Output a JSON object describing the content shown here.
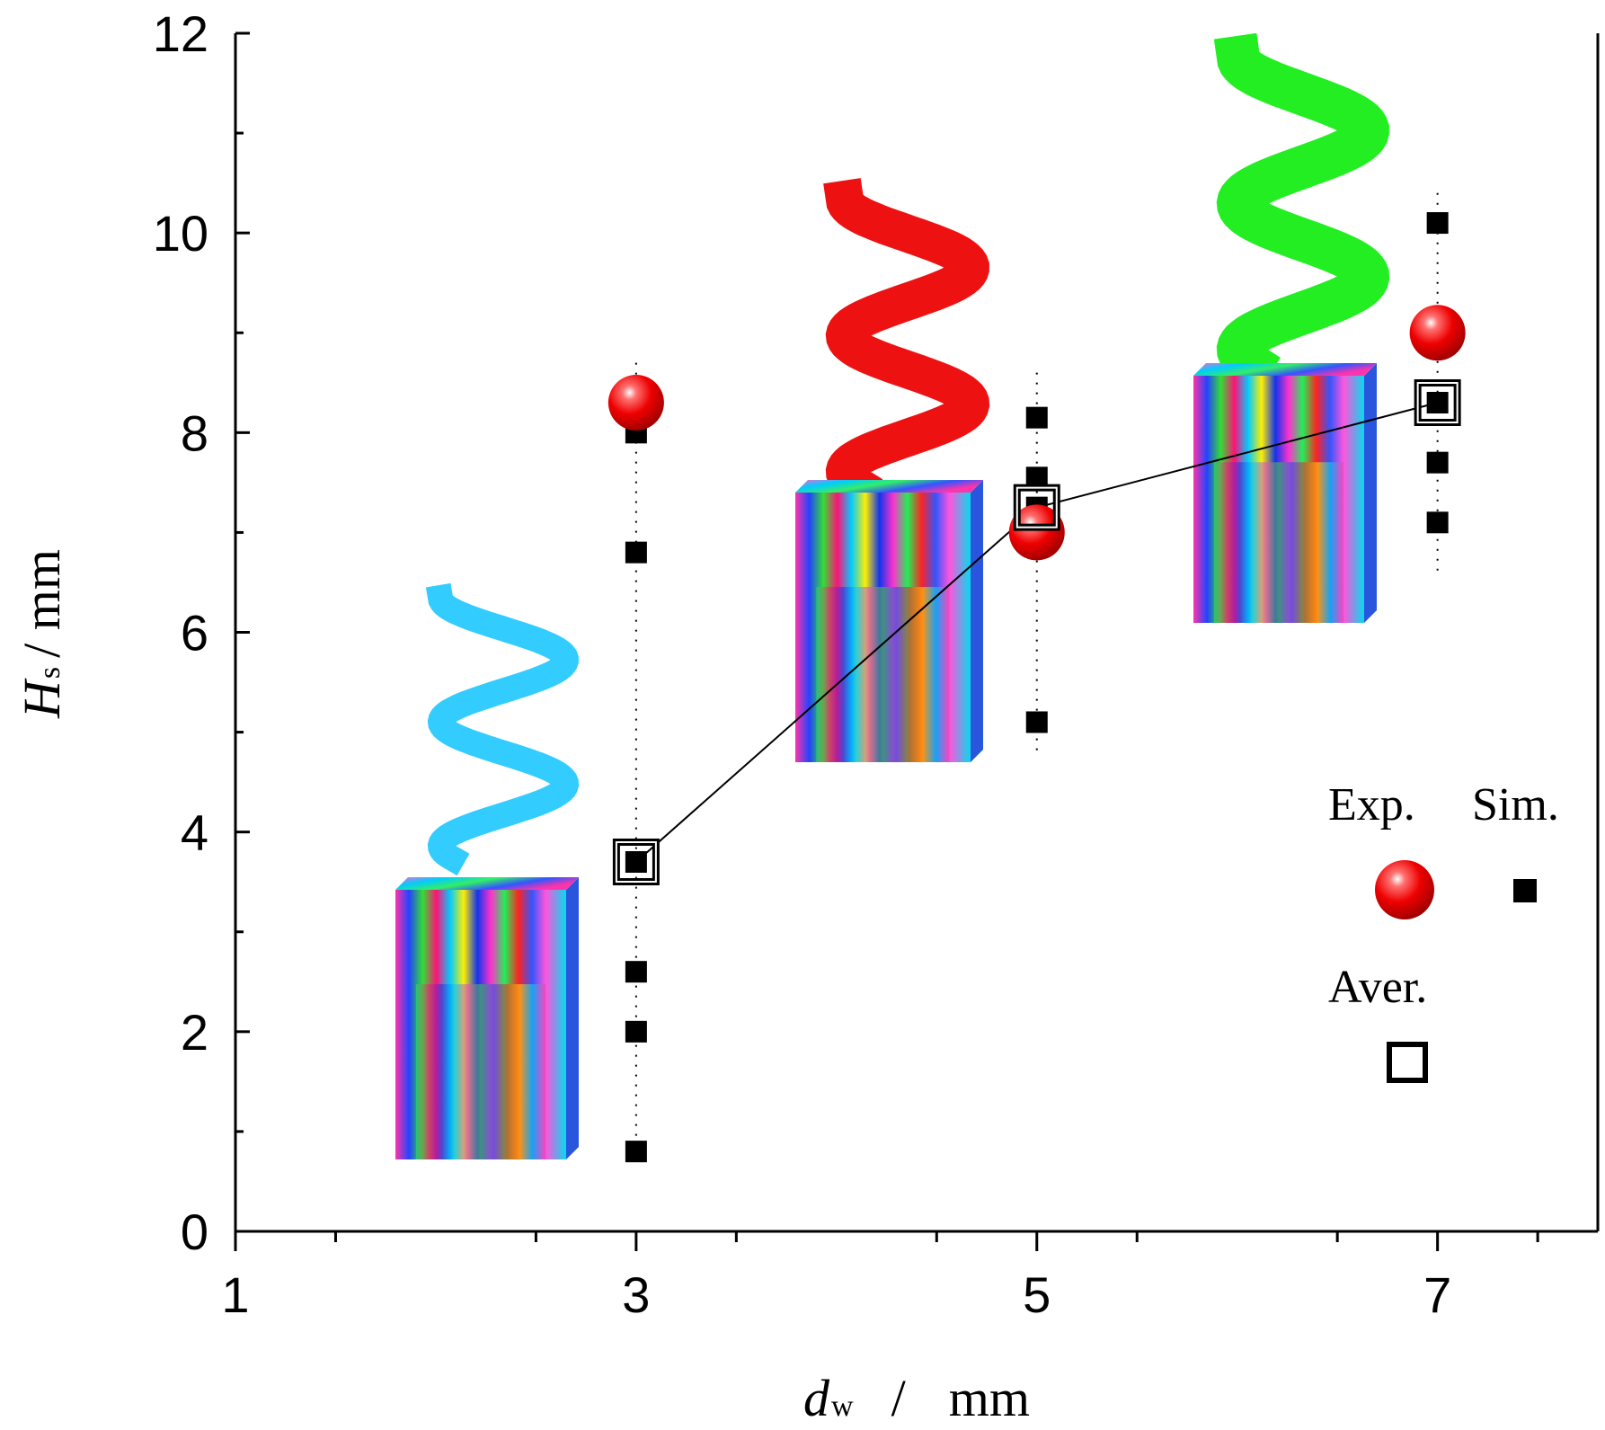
{
  "chart_data": {
    "type": "scatter",
    "title": "",
    "xlabel": {
      "symbol": "d",
      "subscript": "w",
      "separator": "/",
      "unit": "mm"
    },
    "ylabel": {
      "symbol": "H",
      "subscript": "s",
      "unit": "/ mm"
    },
    "xlim": [
      1,
      7.8
    ],
    "ylim": [
      0,
      12
    ],
    "xticks": [
      1,
      3,
      5,
      7
    ],
    "xtick_labels": [
      "1",
      "3",
      "5",
      "7"
    ],
    "yticks": [
      0,
      2,
      4,
      6,
      8,
      10,
      12
    ],
    "ytick_labels": [
      "0",
      "2",
      "4",
      "6",
      "8",
      "10",
      "12"
    ],
    "series": [
      {
        "name": "Exp.",
        "marker": "red-sphere",
        "color": "#ee0000",
        "points": [
          {
            "x": 3,
            "y": 8.3
          },
          {
            "x": 5,
            "y": 7.0
          },
          {
            "x": 7,
            "y": 9.0
          }
        ]
      },
      {
        "name": "Sim.",
        "marker": "filled-square",
        "color": "#000000",
        "points": [
          {
            "x": 3,
            "y": 8.0
          },
          {
            "x": 3,
            "y": 6.8
          },
          {
            "x": 3,
            "y": 3.7
          },
          {
            "x": 3,
            "y": 2.6
          },
          {
            "x": 3,
            "y": 2.0
          },
          {
            "x": 3,
            "y": 0.8
          },
          {
            "x": 5,
            "y": 8.15
          },
          {
            "x": 5,
            "y": 7.55
          },
          {
            "x": 5,
            "y": 7.25
          },
          {
            "x": 5,
            "y": 5.1
          },
          {
            "x": 7,
            "y": 10.1
          },
          {
            "x": 7,
            "y": 8.3
          },
          {
            "x": 7,
            "y": 7.7
          },
          {
            "x": 7,
            "y": 7.1
          }
        ]
      },
      {
        "name": "Aver.",
        "marker": "open-square",
        "color": "#000000",
        "connected": true,
        "points": [
          {
            "x": 3,
            "y": 3.7
          },
          {
            "x": 5,
            "y": 7.25
          },
          {
            "x": 7,
            "y": 8.3
          }
        ]
      }
    ],
    "ranges": [
      {
        "x": 3,
        "ymin": 0.8,
        "ymax": 8.7
      },
      {
        "x": 5,
        "ymin": 4.8,
        "ymax": 8.6
      },
      {
        "x": 7,
        "ymin": 6.6,
        "ymax": 10.4
      }
    ],
    "legend": {
      "position": "right",
      "exp_label": "Exp.",
      "sim_label": "Sim.",
      "aver_label": "Aver."
    },
    "insets": [
      {
        "name": "inset-dw3",
        "helix_color": "#33ccff"
      },
      {
        "name": "inset-dw5",
        "helix_color": "#ee1111"
      },
      {
        "name": "inset-dw7",
        "helix_color": "#22ee22"
      }
    ]
  }
}
